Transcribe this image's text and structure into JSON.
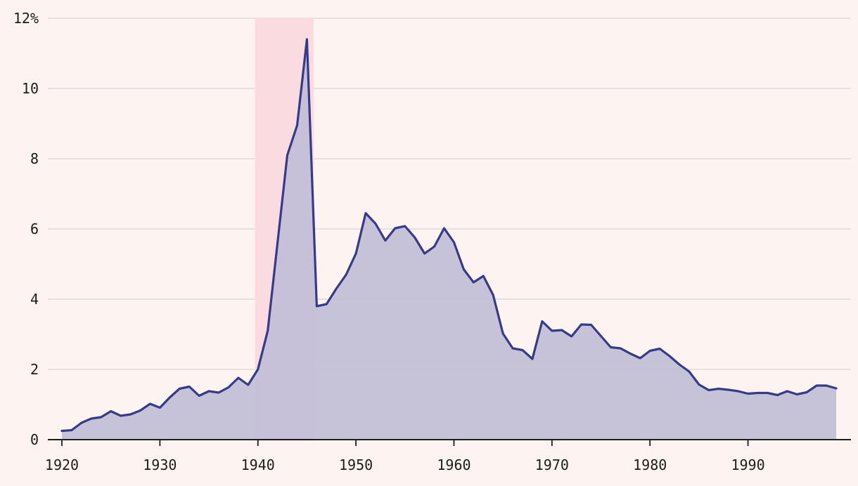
{
  "chart_data": {
    "type": "area",
    "title": "",
    "xlabel": "",
    "ylabel": "",
    "y_unit_suffix": "%",
    "xlim": [
      1919,
      2000
    ],
    "ylim": [
      0,
      12
    ],
    "x_ticks": [
      1920,
      1930,
      1940,
      1950,
      1960,
      1970,
      1980,
      1990
    ],
    "x_tick_labels": [
      "1920",
      "1930",
      "1940",
      "1950",
      "1960",
      "1970",
      "1980",
      "1990"
    ],
    "y_ticks": [
      0,
      2,
      4,
      6,
      8,
      10,
      12
    ],
    "y_tick_labels": [
      "0",
      "2",
      "4",
      "6",
      "8",
      "10",
      "12%"
    ],
    "grid": "horizontal",
    "highlight_band": {
      "x_start": 1939.7,
      "x_end": 1945.7
    },
    "series": [
      {
        "x": [
          1920,
          1921,
          1922,
          1923,
          1924,
          1925,
          1926,
          1927,
          1928,
          1929,
          1930,
          1931,
          1932,
          1933,
          1934,
          1935,
          1936,
          1937,
          1938,
          1939,
          1940,
          1941,
          1942,
          1943,
          1944,
          1945,
          1946,
          1947,
          1948,
          1949,
          1950,
          1951,
          1952,
          1953,
          1954,
          1955,
          1956,
          1957,
          1958,
          1959,
          1960,
          1961,
          1962,
          1963,
          1964,
          1965,
          1966,
          1967,
          1968,
          1969,
          1970,
          1971,
          1972,
          1973,
          1974,
          1975,
          1976,
          1977,
          1978,
          1979,
          1980,
          1981,
          1982,
          1983,
          1984,
          1985,
          1986,
          1987,
          1988,
          1989,
          1990,
          1991,
          1992,
          1993,
          1994,
          1995,
          1996,
          1997,
          1998,
          1999
        ],
        "values": [
          0.25,
          0.27,
          0.48,
          0.6,
          0.64,
          0.81,
          0.68,
          0.72,
          0.83,
          1.02,
          0.91,
          1.2,
          1.45,
          1.51,
          1.25,
          1.38,
          1.34,
          1.49,
          1.76,
          1.56,
          2.0,
          3.1,
          5.6,
          8.1,
          8.95,
          11.4,
          3.8,
          3.86,
          4.3,
          4.7,
          5.3,
          6.45,
          6.15,
          5.67,
          6.02,
          6.08,
          5.76,
          5.3,
          5.5,
          6.02,
          5.62,
          4.85,
          4.48,
          4.66,
          4.12,
          3.02,
          2.6,
          2.55,
          2.3,
          3.37,
          3.1,
          3.12,
          2.94,
          3.28,
          3.27,
          2.95,
          2.63,
          2.6,
          2.45,
          2.32,
          2.53,
          2.59,
          2.38,
          2.14,
          1.94,
          1.57,
          1.41,
          1.45,
          1.42,
          1.38,
          1.31,
          1.33,
          1.33,
          1.27,
          1.38,
          1.29,
          1.35,
          1.54,
          1.54,
          1.46
        ]
      }
    ],
    "colors": {
      "background": "#fdf4f1",
      "line": "#363b89",
      "area_fill": "#c1bed7",
      "highlight": "#fadbe0",
      "gridline": "#dfd8da",
      "axis": "#1c1c1c"
    }
  }
}
